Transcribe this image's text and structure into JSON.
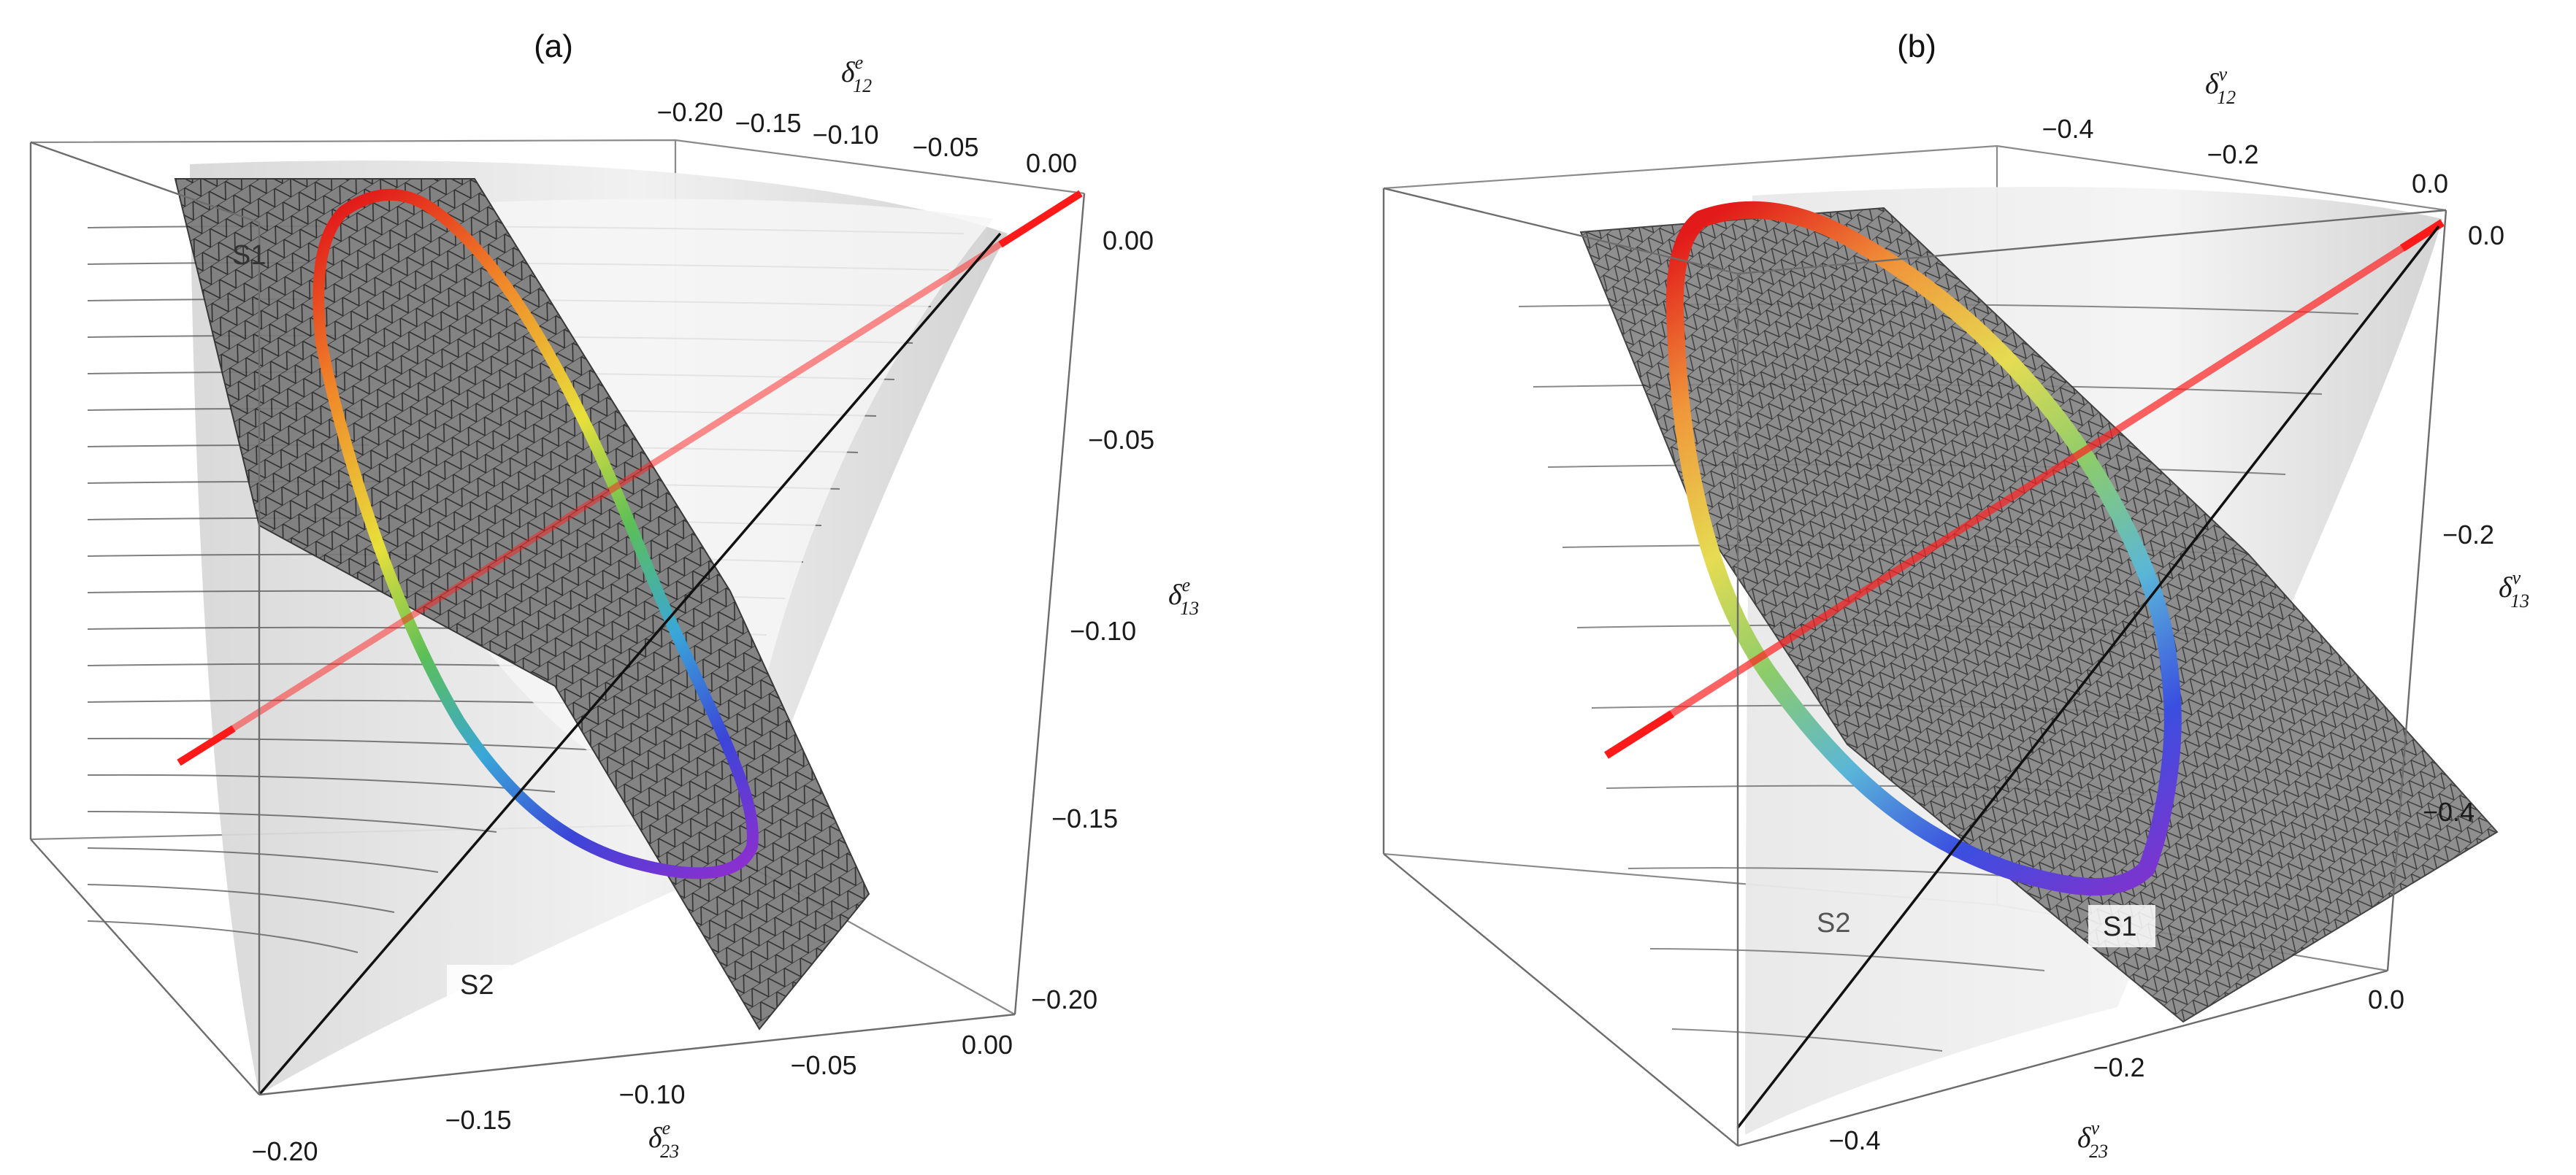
{
  "panels": [
    {
      "title": "(a)",
      "axis_x": {
        "base": "δ",
        "sup": "e",
        "sub": "12",
        "ticks": [
          "−0.20",
          "−0.15",
          "−0.10",
          "−0.05",
          "0.00"
        ]
      },
      "axis_z": {
        "base": "δ",
        "sup": "e",
        "sub": "13",
        "ticks": [
          "0.00",
          "−0.05",
          "−0.10",
          "−0.15",
          "−0.20"
        ]
      },
      "axis_y": {
        "base": "δ",
        "sup": "e",
        "sub": "23",
        "ticks": [
          "0.00",
          "−0.05",
          "−0.10",
          "−0.15",
          "−0.20"
        ]
      },
      "surface_labels": {
        "s1": "S1",
        "s2": "S2"
      }
    },
    {
      "title": "(b)",
      "axis_x": {
        "base": "δ",
        "sup": "ν",
        "sub": "12",
        "ticks": [
          "−0.4",
          "−0.2",
          "0.0"
        ]
      },
      "axis_z": {
        "base": "δ",
        "sup": "ν",
        "sub": "13",
        "ticks": [
          "0.0",
          "−0.2",
          "−0.4"
        ]
      },
      "axis_y": {
        "base": "δ",
        "sup": "ν",
        "sub": "23",
        "ticks": [
          "0.0",
          "−0.2",
          "−0.4"
        ]
      },
      "surface_labels": {
        "s1": "S1",
        "s2": "S2"
      }
    }
  ],
  "colors": {
    "diagonal_line": "#ff1a1a",
    "box_edge": "#7a7a7a",
    "cone_fill": "#e2e2e2",
    "plane_fill": "#6f6f6f"
  }
}
